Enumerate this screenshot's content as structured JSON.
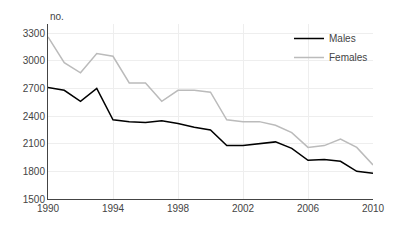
{
  "chart_data": {
    "type": "line",
    "y_label": "no.",
    "x": [
      1990,
      1991,
      1992,
      1993,
      1994,
      1995,
      1996,
      1997,
      1998,
      1999,
      2000,
      2001,
      2002,
      2003,
      2004,
      2005,
      2006,
      2007,
      2008,
      2009,
      2010
    ],
    "series": [
      {
        "name": "Males",
        "color": "#000000",
        "values": [
          2710,
          2680,
          2560,
          2700,
          2360,
          2340,
          2330,
          2350,
          2320,
          2280,
          2250,
          2080,
          2080,
          2100,
          2120,
          2050,
          1920,
          1930,
          1910,
          1800,
          1780
        ]
      },
      {
        "name": "Females",
        "color": "#bbbbbb",
        "values": [
          3260,
          2980,
          2870,
          3080,
          3050,
          2760,
          2760,
          2560,
          2680,
          2680,
          2660,
          2360,
          2340,
          2340,
          2300,
          2220,
          2060,
          2080,
          2150,
          2060,
          1870
        ]
      }
    ],
    "xlim": [
      1990,
      2010
    ],
    "xticks": [
      1990,
      1994,
      1998,
      2002,
      2006,
      2010
    ],
    "ylim": [
      1500,
      3400
    ],
    "yticks": [
      1500,
      1800,
      2100,
      2400,
      2700,
      3000,
      3300
    ],
    "legend": "upper right"
  }
}
